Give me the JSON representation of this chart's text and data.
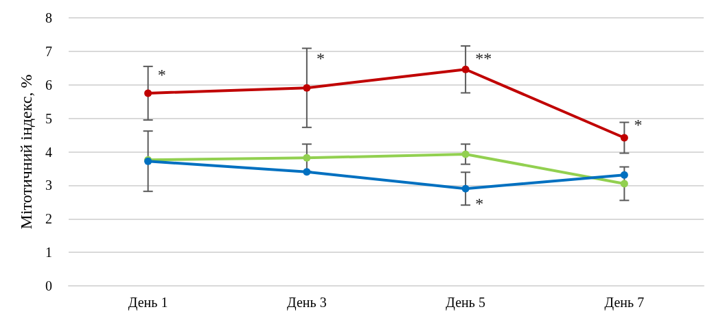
{
  "chart_data": {
    "type": "line",
    "ylabel": "Мітотичний індекс, %",
    "categories": [
      "День 1",
      "День 3",
      "День 5",
      "День 7"
    ],
    "series": [
      {
        "color": "#c00000",
        "values": [
          5.75,
          5.91,
          6.46,
          4.42
        ],
        "errors": [
          0.8,
          1.18,
          0.7,
          0.46
        ]
      },
      {
        "color": "#92d050",
        "values": [
          3.76,
          3.82,
          3.93,
          3.05
        ],
        "errors": [
          null,
          0.41,
          0.3,
          0.5
        ]
      },
      {
        "color": "#0070c0",
        "values": [
          3.72,
          3.4,
          2.9,
          3.31
        ],
        "errors": [
          0.9,
          null,
          0.49,
          null
        ]
      }
    ],
    "ylim": [
      0,
      8
    ],
    "yticks": [
      0,
      1,
      2,
      3,
      4,
      5,
      6,
      7,
      8
    ],
    "grid": "y",
    "marker": "circle",
    "line_style": "solid",
    "annotations": [
      {
        "text": "*",
        "x": "День 1",
        "y": 6.3
      },
      {
        "text": "*",
        "x": "День 3",
        "y": 6.8
      },
      {
        "text": "**",
        "x": "День 5",
        "y": 6.8
      },
      {
        "text": "*",
        "x": "День 7",
        "y": 4.8
      },
      {
        "text": "*",
        "x": "День 5",
        "y": 2.45
      }
    ]
  }
}
